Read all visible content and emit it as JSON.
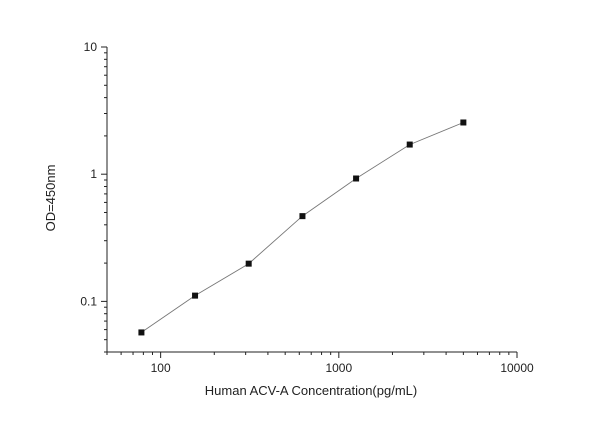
{
  "chart_data": {
    "type": "scatter",
    "xlabel": "Human ACV-A Concentration(pg/mL)",
    "ylabel": "OD=450nm",
    "xscale": "log",
    "yscale": "log",
    "xlim": [
      50,
      10000
    ],
    "ylim": [
      0.04,
      10
    ],
    "grid": false,
    "x_ticks": [
      {
        "value": 100,
        "label": "100"
      },
      {
        "value": 1000,
        "label": "1000"
      },
      {
        "value": 10000,
        "label": "10000"
      }
    ],
    "y_ticks": [
      {
        "value": 0.1,
        "label": "0.1"
      },
      {
        "value": 1,
        "label": "1"
      },
      {
        "value": 10,
        "label": "10"
      }
    ],
    "series": [
      {
        "x": [
          78,
          156,
          312,
          625,
          1250,
          2500,
          5000
        ],
        "y": [
          0.057,
          0.111,
          0.198,
          0.468,
          0.925,
          1.71,
          2.55
        ],
        "marker": "square",
        "line": true
      }
    ],
    "colors": {
      "marker": "#111111",
      "line": "#777777",
      "axis": "#222222"
    }
  }
}
